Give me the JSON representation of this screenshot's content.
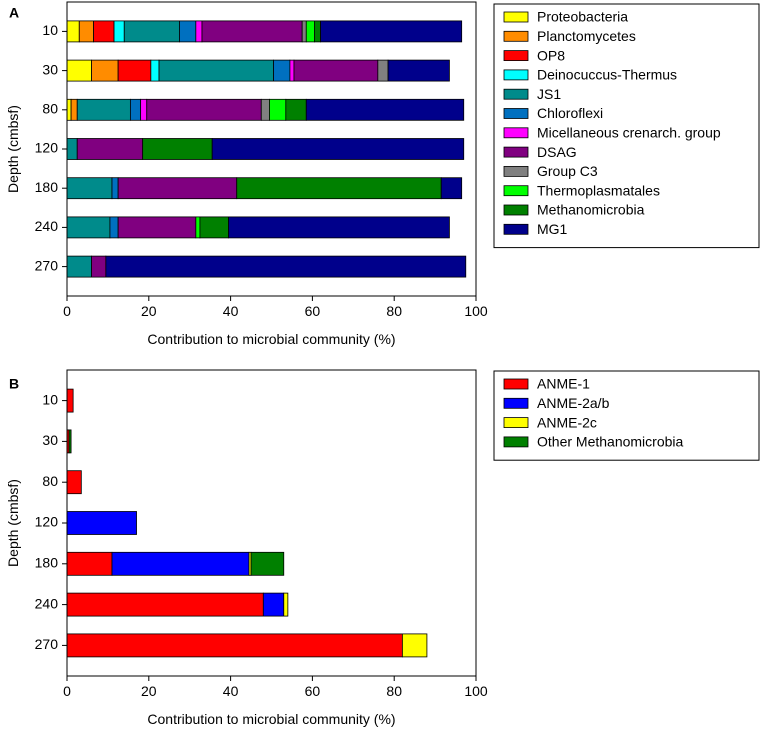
{
  "chart_data": [
    {
      "panel_label": "A",
      "type": "bar",
      "orientation": "horizontal",
      "stacked": true,
      "xlabel": "Contribution to microbial community (%)",
      "ylabel": "Depth (cmbsf)",
      "xlim": [
        0,
        100
      ],
      "xticks": [
        0,
        20,
        40,
        60,
        80,
        100
      ],
      "categories": [
        "10",
        "30",
        "80",
        "120",
        "180",
        "240",
        "270"
      ],
      "legend_position": "right",
      "series": [
        {
          "name": "Proteobacteria",
          "color": "#ffff00",
          "values": [
            3,
            6,
            1,
            0,
            0,
            0,
            0
          ]
        },
        {
          "name": "Planctomycetes",
          "color": "#ff8c00",
          "values": [
            3.5,
            6.5,
            1.5,
            0,
            0,
            0,
            0
          ]
        },
        {
          "name": "OP8",
          "color": "#ff0000",
          "values": [
            5,
            8,
            0,
            0,
            0,
            0,
            0
          ]
        },
        {
          "name": "Deinocuccus-Thermus",
          "color": "#00ffff",
          "values": [
            2.5,
            2,
            0,
            0,
            0,
            0,
            0
          ]
        },
        {
          "name": "JS1",
          "color": "#008b8b",
          "values": [
            13.5,
            28,
            13,
            2.5,
            11,
            10.5,
            6
          ]
        },
        {
          "name": "Chloroflexi",
          "color": "#0070c0",
          "values": [
            4,
            4,
            2.5,
            0,
            1.5,
            2,
            0
          ]
        },
        {
          "name": "Micellaneous crenarch. group",
          "color": "#ff00ff",
          "values": [
            1.5,
            1,
            1.5,
            0,
            0,
            0,
            0
          ]
        },
        {
          "name": "DSAG",
          "color": "#800080",
          "values": [
            24.5,
            20.5,
            28,
            16,
            29,
            19,
            3.5
          ]
        },
        {
          "name": "Group C3",
          "color": "#808080",
          "values": [
            1,
            2.5,
            2,
            0,
            0,
            0,
            0
          ]
        },
        {
          "name": "Thermoplasmatales",
          "color": "#00ff00",
          "values": [
            2,
            0,
            4,
            0,
            0,
            1,
            0
          ]
        },
        {
          "name": "Methanomicrobia",
          "color": "#008000",
          "values": [
            1.5,
            0,
            5,
            17,
            50,
            7,
            0
          ]
        },
        {
          "name": "MG1",
          "color": "#00008b",
          "values": [
            34.5,
            15,
            38.5,
            61.5,
            5,
            54,
            88
          ]
        }
      ]
    },
    {
      "panel_label": "B",
      "type": "bar",
      "orientation": "horizontal",
      "stacked": true,
      "xlabel": "Contribution to microbial community (%)",
      "ylabel": "Depth (cmbsf)",
      "xlim": [
        0,
        100
      ],
      "xticks": [
        0,
        20,
        40,
        60,
        80,
        100
      ],
      "categories": [
        "10",
        "30",
        "80",
        "120",
        "180",
        "240",
        "270"
      ],
      "legend_position": "right",
      "series": [
        {
          "name": "ANME-1",
          "color": "#ff0000",
          "values": [
            1.5,
            0.5,
            3.5,
            0,
            11,
            48,
            82
          ]
        },
        {
          "name": "ANME-2a/b",
          "color": "#0000ff",
          "values": [
            0,
            0,
            0,
            17,
            33.5,
            5,
            0
          ]
        },
        {
          "name": "ANME-2c",
          "color": "#ffff00",
          "values": [
            0,
            0,
            0,
            0,
            0.5,
            1,
            6
          ]
        },
        {
          "name": "Other Methanomicrobia",
          "color": "#008000",
          "values": [
            0,
            0.5,
            0,
            0,
            8,
            0,
            0
          ]
        }
      ]
    }
  ]
}
